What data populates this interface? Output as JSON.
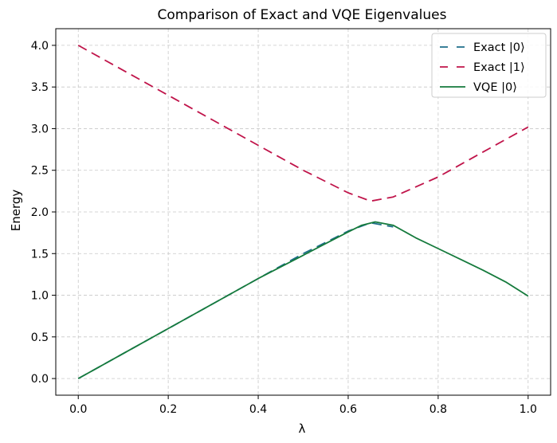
{
  "chart_data": {
    "type": "line",
    "title": "Comparison of Exact and VQE Eigenvalues",
    "xlabel": "λ",
    "ylabel": "Energy",
    "xlim": [
      -0.05,
      1.05
    ],
    "ylim": [
      -0.2,
      4.2
    ],
    "xticks": [
      0.0,
      0.2,
      0.4,
      0.6,
      0.8,
      1.0
    ],
    "xtick_labels": [
      "0.0",
      "0.2",
      "0.4",
      "0.6",
      "0.8",
      "1.0"
    ],
    "yticks": [
      0.0,
      0.5,
      1.0,
      1.5,
      2.0,
      2.5,
      3.0,
      3.5,
      4.0
    ],
    "ytick_labels": [
      "0.0",
      "0.5",
      "1.0",
      "1.5",
      "2.0",
      "2.5",
      "3.0",
      "3.5",
      "4.0"
    ],
    "grid": true,
    "legend_position": "top-right",
    "series": [
      {
        "name": "Exact |0⟩",
        "style": "dashed",
        "color": "#1f6f8b",
        "x": [
          0.0,
          0.1,
          0.2,
          0.3,
          0.4,
          0.5,
          0.6,
          0.65,
          0.7
        ],
        "y": [
          0.0,
          0.3,
          0.6,
          0.9,
          1.2,
          1.5,
          1.77,
          1.87,
          1.82
        ]
      },
      {
        "name": "Exact |1⟩",
        "style": "dashed",
        "color": "#c0144a",
        "x": [
          0.0,
          0.1,
          0.2,
          0.3,
          0.4,
          0.5,
          0.6,
          0.65,
          0.7,
          0.8,
          0.9,
          1.0
        ],
        "y": [
          4.0,
          3.7,
          3.4,
          3.1,
          2.8,
          2.5,
          2.23,
          2.13,
          2.18,
          2.42,
          2.72,
          3.02
        ]
      },
      {
        "name": "VQE |0⟩",
        "style": "solid",
        "color": "#157a3c",
        "x": [
          0.0,
          0.1,
          0.2,
          0.3,
          0.4,
          0.5,
          0.55,
          0.6,
          0.63,
          0.66,
          0.7,
          0.75,
          0.8,
          0.85,
          0.9,
          0.95,
          1.0
        ],
        "y": [
          0.0,
          0.3,
          0.6,
          0.9,
          1.2,
          1.48,
          1.62,
          1.76,
          1.84,
          1.88,
          1.84,
          1.69,
          1.56,
          1.43,
          1.3,
          1.16,
          0.99
        ]
      }
    ]
  }
}
